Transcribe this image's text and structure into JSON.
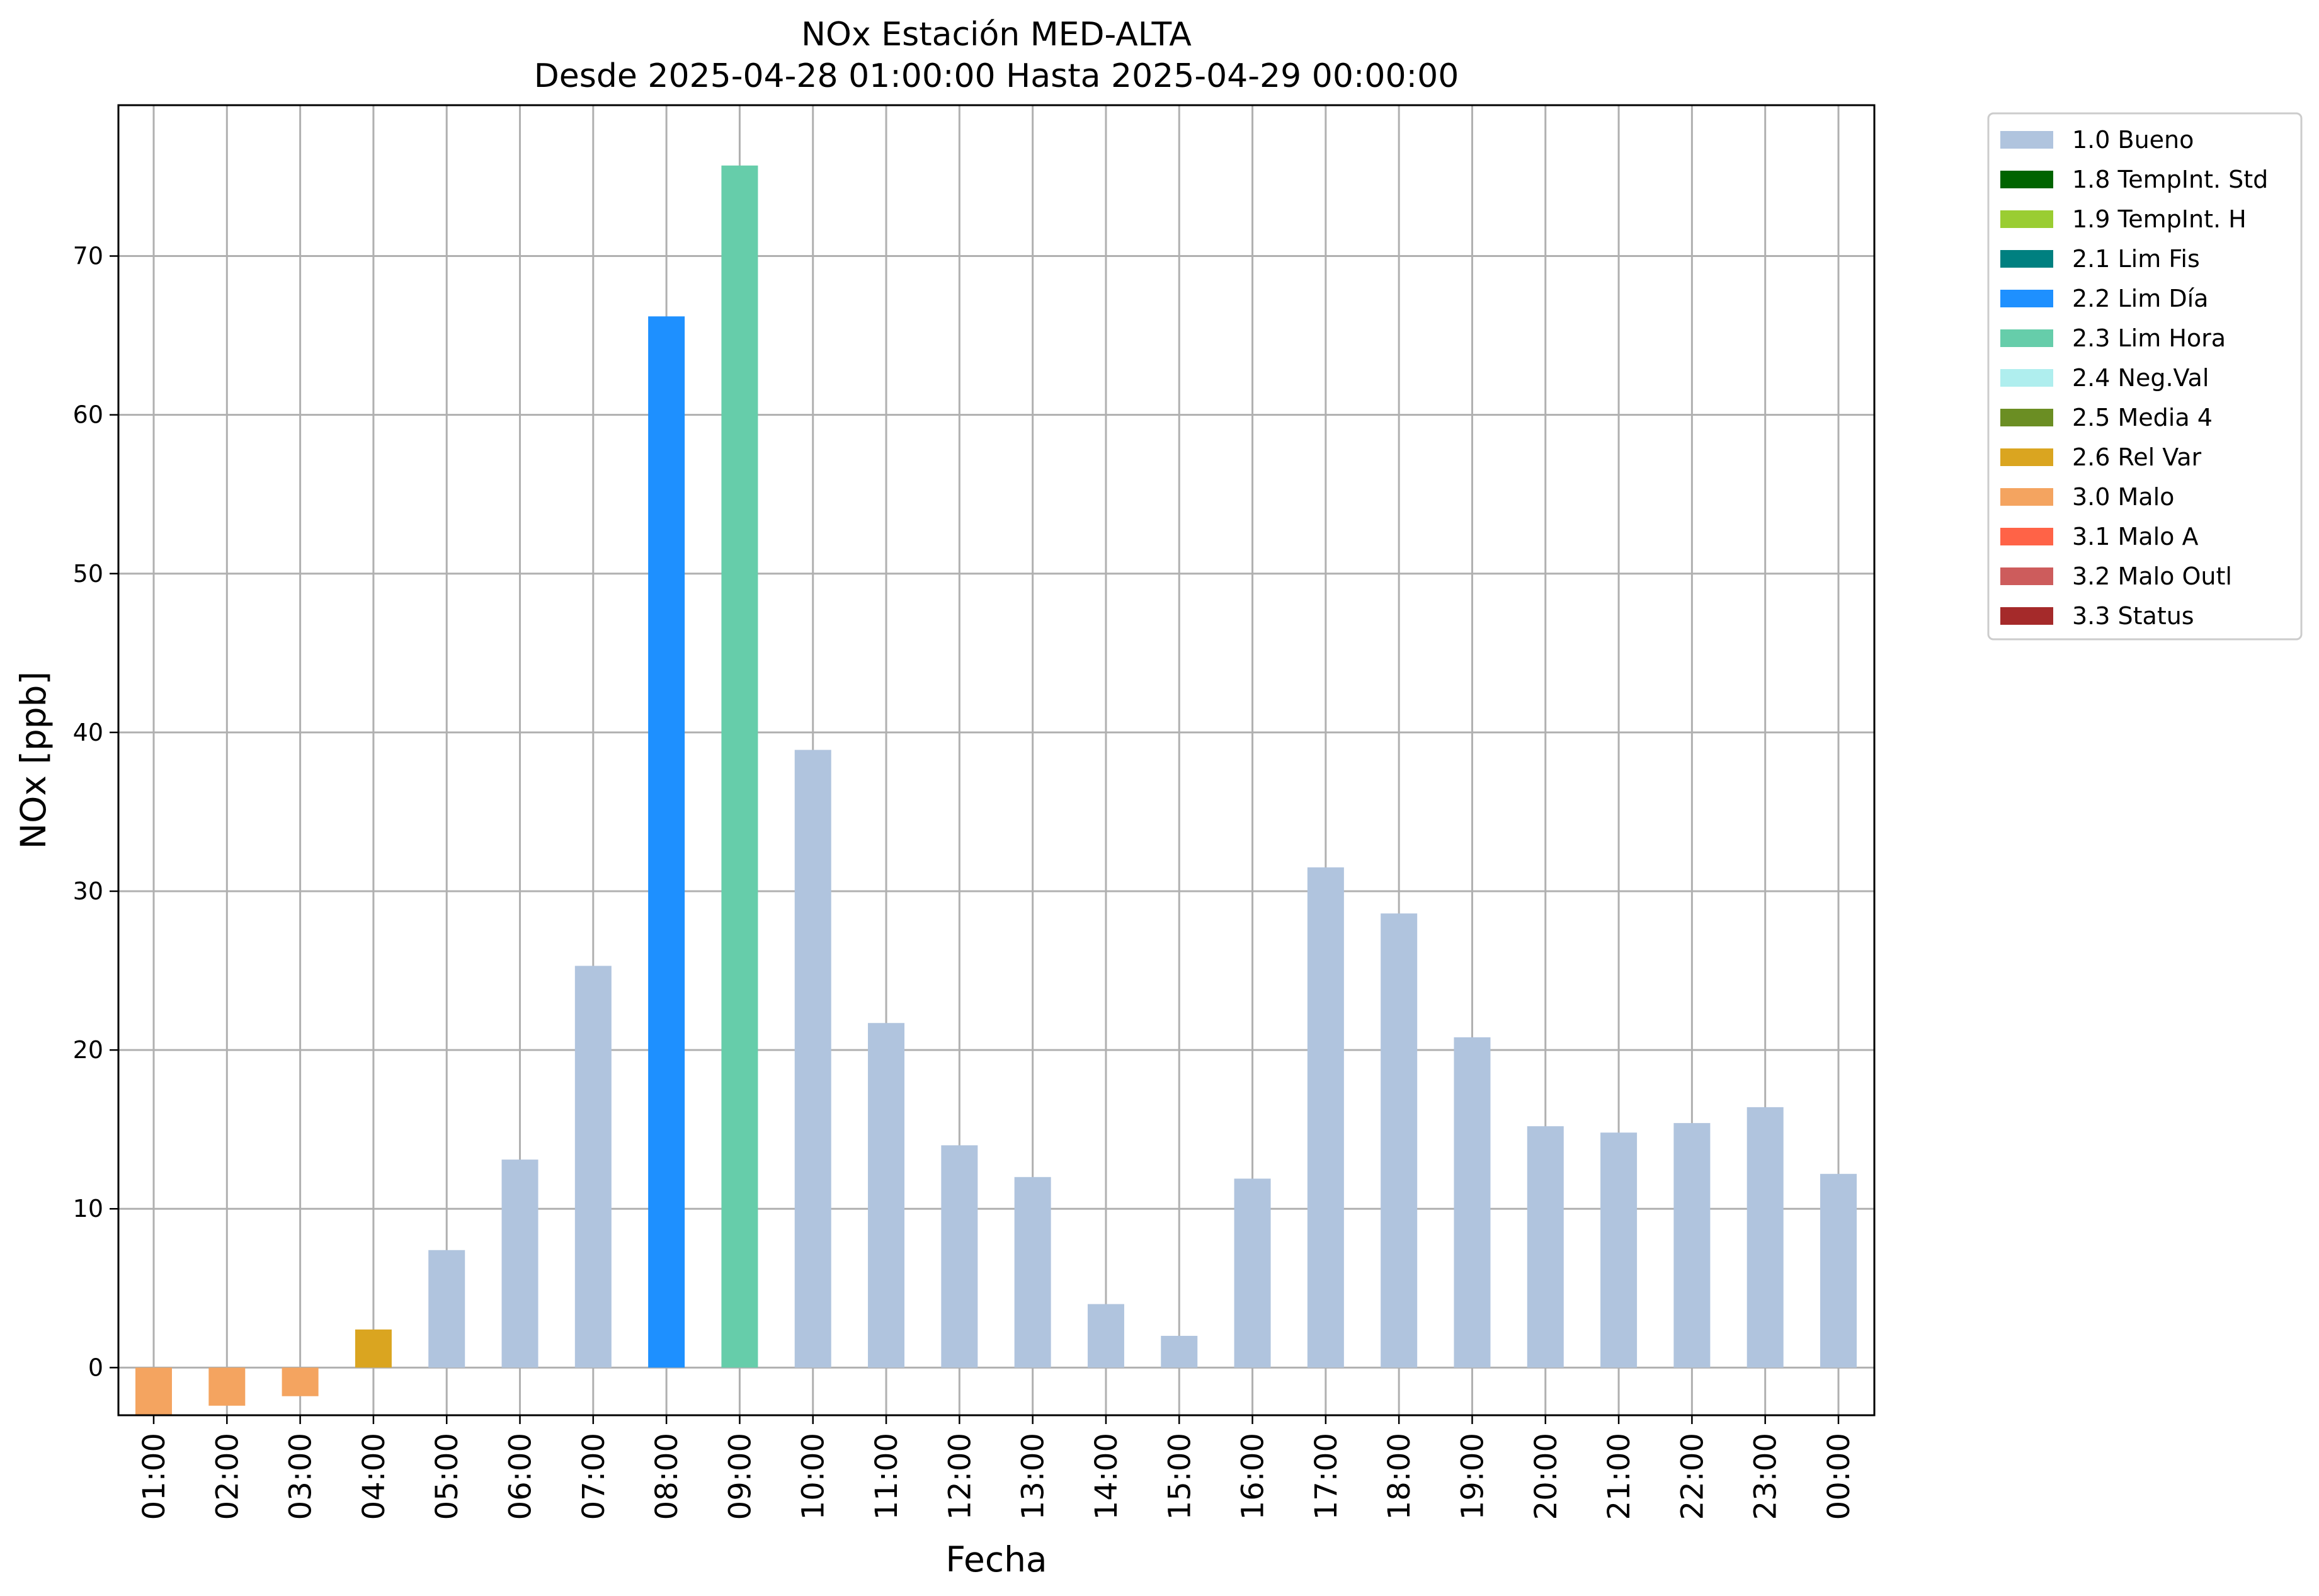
{
  "chart_data": {
    "type": "bar",
    "title": "NOx Estación MED-ALTA",
    "subtitle": "Desde 2025-04-28 01:00:00 Hasta 2025-04-29 00:00:00",
    "xlabel": "Fecha",
    "ylabel": "NOx [ppb]",
    "categories": [
      "01:00",
      "02:00",
      "03:00",
      "04:00",
      "05:00",
      "06:00",
      "07:00",
      "08:00",
      "09:00",
      "10:00",
      "11:00",
      "12:00",
      "13:00",
      "14:00",
      "15:00",
      "16:00",
      "17:00",
      "18:00",
      "19:00",
      "20:00",
      "21:00",
      "22:00",
      "23:00",
      "00:00"
    ],
    "values": [
      -3.0,
      -2.4,
      -1.8,
      2.4,
      7.4,
      13.1,
      25.3,
      66.2,
      75.7,
      38.9,
      21.7,
      14.0,
      12.0,
      4.0,
      2.0,
      11.9,
      31.5,
      28.6,
      20.8,
      15.2,
      14.8,
      15.4,
      16.4,
      12.2
    ],
    "flags": [
      "3.0 Malo",
      "3.0 Malo",
      "3.0 Malo",
      "2.6 Rel Var",
      "1.0 Bueno",
      "1.0 Bueno",
      "1.0 Bueno",
      "2.2 Lim Día",
      "2.3 Lim Hora",
      "1.0 Bueno",
      "1.0 Bueno",
      "1.0 Bueno",
      "1.0 Bueno",
      "1.0 Bueno",
      "1.0 Bueno",
      "1.0 Bueno",
      "1.0 Bueno",
      "1.0 Bueno",
      "1.0 Bueno",
      "1.0 Bueno",
      "1.0 Bueno",
      "1.0 Bueno",
      "1.0 Bueno",
      "1.0 Bueno"
    ],
    "ylim": [
      -3.0,
      79.5
    ],
    "yticks": [
      0,
      10,
      20,
      30,
      40,
      50,
      60,
      70
    ],
    "grid": true,
    "legend_position": "outside-top-right",
    "legend": [
      {
        "label": "1.0 Bueno",
        "color": "#b0c4de"
      },
      {
        "label": "1.8 TempInt. Std",
        "color": "#006400"
      },
      {
        "label": "1.9 TempInt. H",
        "color": "#9acd32"
      },
      {
        "label": "2.1 Lim Fis",
        "color": "#008080"
      },
      {
        "label": "2.2 Lim Día",
        "color": "#1e90ff"
      },
      {
        "label": "2.3 Lim Hora",
        "color": "#66cdaa"
      },
      {
        "label": "2.4 Neg.Val",
        "color": "#afeeee"
      },
      {
        "label": "2.5 Media 4",
        "color": "#6b8e23"
      },
      {
        "label": "2.6 Rel Var",
        "color": "#daa520"
      },
      {
        "label": "3.0 Malo",
        "color": "#f4a460"
      },
      {
        "label": "3.1 Malo A",
        "color": "#ff6347"
      },
      {
        "label": "3.2 Malo Outl",
        "color": "#cd5c5c"
      },
      {
        "label": "3.3 Status",
        "color": "#a52a2a"
      }
    ]
  }
}
